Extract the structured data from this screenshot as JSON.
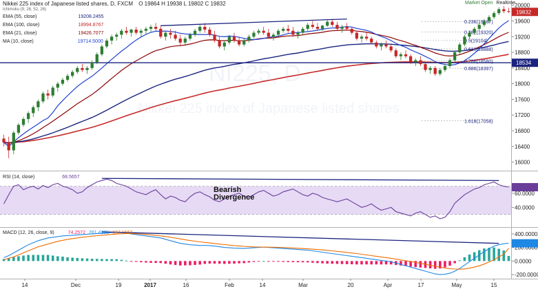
{
  "header": {
    "title": "Nikkei 225 index of Japanese listed shares, D, FXCM",
    "ohlc": "O 19864 H 19938 L 19802 C 19832",
    "indicator_ichimoku": "Ichimoku (9, 26, 52, 26)",
    "market_status": "Market Open",
    "realtime": "Realtime",
    "price_tag": "19832",
    "hline_tag": "18534"
  },
  "legend": [
    {
      "label": "EMA (55, close)",
      "value": "19208.2455",
      "color": "#1a237e"
    },
    {
      "label": "EMA (100, close)",
      "value": "18994.8767",
      "color": "#c62828"
    },
    {
      "label": "EMA (21, close)",
      "value": "19426.7077",
      "color": "#8b0000"
    },
    {
      "label": "MA (10, close)",
      "value": "19714.5000",
      "color": "#1e40d0"
    }
  ],
  "watermark": {
    "symbol": "NI225, D",
    "name": "Nikkei 225 index of Japanese listed shares"
  },
  "annotations": {
    "divergence_line1": "Bearish",
    "divergence_line2": "Divergence"
  },
  "fib_levels": [
    {
      "label": "0.236(19587)",
      "price": 19587
    },
    {
      "label": "0.382(19320)",
      "price": 19320
    },
    {
      "label": "0.5(19104)",
      "price": 19104
    },
    {
      "label": "0.618(18888)",
      "price": 18888
    },
    {
      "label": "0.786(18580)",
      "price": 18580
    },
    {
      "label": "0.886(18397)",
      "price": 18397
    },
    {
      "label": "1.618(17058)",
      "price": 17058
    }
  ],
  "colors": {
    "up": "#2e7d32",
    "down": "#c62828",
    "hline": "#1a237e",
    "trend": "#1a237e",
    "rsi": "#6a3d9a",
    "rsi_band": "#e6daf5",
    "macd": "#1e88e5",
    "signal": "#ef6c00",
    "hist_pos": "#26a69a",
    "hist_neg": "#e91e63",
    "tag": "#c62828",
    "hline_tag": "#1a237e"
  },
  "chart_data": [
    {
      "type": "candlestick",
      "title": "Nikkei 225 index of Japanese listed shares, D, FXCM",
      "ylim": [
        15800,
        20100
      ],
      "y_ticks": [
        16000,
        16400,
        16800,
        17200,
        17600,
        18000,
        18400,
        18800,
        19200,
        19600,
        20000
      ],
      "x_tick_labels": [
        "14",
        "Dec",
        "19",
        "2017",
        "16",
        "Feb",
        "14",
        "Mar",
        "20",
        "Apr",
        "17",
        "May",
        "15"
      ],
      "horizontal_line": 18534,
      "ohlc": [
        [
          16600,
          16700,
          16400,
          16500
        ],
        [
          16500,
          16650,
          16100,
          16300
        ],
        [
          16300,
          16800,
          16200,
          16750
        ],
        [
          16750,
          17000,
          16700,
          16950
        ],
        [
          16950,
          17150,
          16900,
          17100
        ],
        [
          17100,
          17300,
          17000,
          17250
        ],
        [
          17250,
          17450,
          17150,
          17400
        ],
        [
          17400,
          17600,
          17300,
          17550
        ],
        [
          17550,
          17800,
          17500,
          17750
        ],
        [
          17750,
          17850,
          17600,
          17700
        ],
        [
          17700,
          17950,
          17650,
          17900
        ],
        [
          17900,
          18050,
          17800,
          18000
        ],
        [
          18000,
          18150,
          17950,
          18100
        ],
        [
          18100,
          18250,
          18050,
          18200
        ],
        [
          18200,
          18350,
          18150,
          18300
        ],
        [
          18300,
          18450,
          18250,
          18400
        ],
        [
          18400,
          18500,
          18300,
          18350
        ],
        [
          18350,
          18450,
          18250,
          18400
        ],
        [
          18400,
          18600,
          18350,
          18550
        ],
        [
          18550,
          18800,
          18500,
          18750
        ],
        [
          18750,
          19000,
          18700,
          18950
        ],
        [
          18950,
          19150,
          18900,
          19100
        ],
        [
          19100,
          19250,
          19000,
          19200
        ],
        [
          19200,
          19300,
          19100,
          19250
        ],
        [
          19250,
          19400,
          19150,
          19350
        ],
        [
          19350,
          19450,
          19250,
          19300
        ],
        [
          19300,
          19400,
          19200,
          19380
        ],
        [
          19380,
          19450,
          19250,
          19300
        ],
        [
          19300,
          19400,
          19200,
          19350
        ],
        [
          19350,
          19450,
          19250,
          19400
        ],
        [
          19400,
          19500,
          19300,
          19450
        ],
        [
          19450,
          19550,
          19350,
          19400
        ],
        [
          19400,
          19480,
          19150,
          19200
        ],
        [
          19200,
          19350,
          19100,
          19300
        ],
        [
          19300,
          19400,
          19150,
          19250
        ],
        [
          19250,
          19350,
          19100,
          19150
        ],
        [
          19150,
          19250,
          18950,
          19050
        ],
        [
          19050,
          19200,
          19000,
          19150
        ],
        [
          19150,
          19300,
          19100,
          19250
        ],
        [
          19250,
          19400,
          19200,
          19350
        ],
        [
          19350,
          19500,
          19300,
          19450
        ],
        [
          19450,
          19550,
          19300,
          19380
        ],
        [
          19380,
          19450,
          19200,
          19250
        ],
        [
          19250,
          19350,
          19050,
          19100
        ],
        [
          19100,
          19200,
          18900,
          18950
        ],
        [
          18950,
          19100,
          18850,
          19050
        ],
        [
          19050,
          19250,
          19000,
          19200
        ],
        [
          19200,
          19300,
          19050,
          19100
        ],
        [
          19100,
          19200,
          18950,
          19000
        ],
        [
          19000,
          19150,
          18950,
          19100
        ],
        [
          19100,
          19250,
          19050,
          19200
        ],
        [
          19200,
          19350,
          19150,
          19300
        ],
        [
          19300,
          19400,
          19250,
          19350
        ],
        [
          19350,
          19450,
          19250,
          19300
        ],
        [
          19300,
          19400,
          19150,
          19200
        ],
        [
          19200,
          19300,
          19100,
          19250
        ],
        [
          19250,
          19400,
          19200,
          19350
        ],
        [
          19350,
          19450,
          19300,
          19400
        ],
        [
          19400,
          19500,
          19300,
          19350
        ],
        [
          19350,
          19450,
          19200,
          19250
        ],
        [
          19250,
          19350,
          19150,
          19300
        ],
        [
          19300,
          19450,
          19250,
          19400
        ],
        [
          19400,
          19550,
          19350,
          19500
        ],
        [
          19500,
          19600,
          19400,
          19450
        ],
        [
          19450,
          19550,
          19350,
          19400
        ],
        [
          19400,
          19500,
          19350,
          19480
        ],
        [
          19480,
          19620,
          19450,
          19580
        ],
        [
          19580,
          19650,
          19450,
          19500
        ],
        [
          19500,
          19580,
          19350,
          19400
        ],
        [
          19400,
          19500,
          19300,
          19450
        ],
        [
          19450,
          19550,
          19350,
          19400
        ],
        [
          19400,
          19450,
          19250,
          19300
        ],
        [
          19300,
          19350,
          19100,
          19150
        ],
        [
          19150,
          19250,
          19050,
          19200
        ],
        [
          19200,
          19300,
          19100,
          19150
        ],
        [
          19150,
          19200,
          19000,
          19050
        ],
        [
          19050,
          19100,
          18900,
          18950
        ],
        [
          18950,
          19050,
          18850,
          19000
        ],
        [
          19000,
          19100,
          18900,
          18950
        ],
        [
          18950,
          19000,
          18800,
          18850
        ],
        [
          18850,
          18900,
          18650,
          18700
        ],
        [
          18700,
          18800,
          18600,
          18750
        ],
        [
          18750,
          18850,
          18650,
          18700
        ],
        [
          18700,
          18750,
          18500,
          18550
        ],
        [
          18550,
          18650,
          18450,
          18600
        ],
        [
          18600,
          18700,
          18450,
          18500
        ],
        [
          18500,
          18550,
          18300,
          18350
        ],
        [
          18350,
          18450,
          18250,
          18400
        ],
        [
          18400,
          18450,
          18200,
          18250
        ],
        [
          18250,
          18400,
          18200,
          18350
        ],
        [
          18350,
          18500,
          18300,
          18450
        ],
        [
          18450,
          18650,
          18400,
          18600
        ],
        [
          18600,
          18850,
          18550,
          18800
        ],
        [
          18800,
          19050,
          18750,
          19000
        ],
        [
          19000,
          19250,
          18950,
          19200
        ],
        [
          19200,
          19350,
          19150,
          19300
        ],
        [
          19300,
          19450,
          19250,
          19400
        ],
        [
          19400,
          19550,
          19350,
          19500
        ],
        [
          19500,
          19650,
          19450,
          19600
        ],
        [
          19600,
          19750,
          19550,
          19700
        ],
        [
          19700,
          19850,
          19650,
          19800
        ],
        [
          19800,
          19950,
          19750,
          19900
        ],
        [
          19900,
          19980,
          19800,
          19850
        ],
        [
          19850,
          19938,
          19802,
          19832
        ]
      ]
    },
    {
      "type": "line",
      "title": "RSI (14, close)",
      "value_label": "68.5657",
      "ylim": [
        20,
        90
      ],
      "y_ticks": [
        40,
        60
      ],
      "band": [
        30,
        70
      ],
      "values": [
        45,
        58,
        70,
        72,
        65,
        68,
        70,
        66,
        71,
        68,
        72,
        74,
        70,
        68,
        65,
        60,
        62,
        68,
        72,
        76,
        78,
        80,
        78,
        74,
        72,
        70,
        66,
        62,
        60,
        58,
        62,
        65,
        58,
        52,
        56,
        54,
        50,
        48,
        55,
        60,
        62,
        58,
        55,
        50,
        48,
        52,
        56,
        58,
        60,
        56,
        54,
        58,
        62,
        64,
        60,
        56,
        58,
        62,
        64,
        66,
        62,
        58,
        56,
        60,
        58,
        54,
        52,
        50,
        48,
        50,
        52,
        48,
        44,
        40,
        42,
        45,
        40,
        36,
        38,
        40,
        34,
        32,
        30,
        28,
        32,
        34,
        30,
        26,
        28,
        24,
        26,
        34,
        46,
        52,
        58,
        62,
        66,
        68,
        72,
        74,
        76,
        72,
        70,
        68.5657
      ]
    },
    {
      "type": "line",
      "title": "MACD (12, 26, close, 9)",
      "value_labels": [
        "74.2572",
        "261.4235",
        "187.1663"
      ],
      "ylim": [
        -250,
        480
      ],
      "y_ticks": [
        -200,
        0,
        200,
        400
      ],
      "y_tick_labels": [
        "-200.0000",
        "0.0000",
        "200.0000",
        "400.0000"
      ],
      "series": [
        {
          "name": "MACD",
          "values": [
            50,
            80,
            120,
            160,
            200,
            240,
            270,
            300,
            320,
            340,
            350,
            360,
            370,
            375,
            380,
            385,
            390,
            395,
            400,
            405,
            410,
            415,
            420,
            425,
            420,
            410,
            400,
            390,
            380,
            370,
            360,
            350,
            340,
            320,
            300,
            280,
            260,
            250,
            240,
            235,
            230,
            232,
            228,
            220,
            210,
            200,
            195,
            190,
            188,
            185,
            190,
            195,
            200,
            205,
            200,
            195,
            190,
            185,
            180,
            175,
            170,
            165,
            160,
            150,
            140,
            130,
            120,
            110,
            100,
            90,
            80,
            70,
            60,
            50,
            40,
            30,
            20,
            10,
            0,
            -10,
            -30,
            -50,
            -70,
            -90,
            -110,
            -130,
            -150,
            -170,
            -190,
            -200,
            -195,
            -180,
            -150,
            -110,
            -60,
            -10,
            40,
            90,
            140,
            180,
            220,
            240,
            255,
            261.4235
          ]
        },
        {
          "name": "Signal",
          "values": [
            20,
            40,
            60,
            90,
            120,
            150,
            180,
            210,
            230,
            250,
            270,
            290,
            305,
            320,
            330,
            340,
            350,
            358,
            366,
            374,
            380,
            386,
            392,
            398,
            402,
            404,
            404,
            402,
            398,
            392,
            386,
            378,
            370,
            360,
            350,
            338,
            326,
            314,
            302,
            292,
            282,
            274,
            266,
            258,
            250,
            242,
            235,
            228,
            222,
            216,
            212,
            208,
            206,
            205,
            204,
            203,
            201,
            198,
            195,
            192,
            188,
            184,
            180,
            175,
            170,
            164,
            158,
            150,
            142,
            134,
            126,
            118,
            110,
            100,
            90,
            80,
            70,
            60,
            50,
            40,
            28,
            16,
            4,
            -8,
            -20,
            -34,
            -48,
            -62,
            -76,
            -90,
            -102,
            -112,
            -118,
            -120,
            -116,
            -106,
            -90,
            -70,
            -45,
            -15,
            20,
            60,
            100,
            187.1663
          ]
        },
        {
          "name": "Histogram",
          "values": [
            30,
            40,
            60,
            70,
            80,
            90,
            90,
            90,
            90,
            90,
            80,
            70,
            65,
            55,
            50,
            45,
            40,
            37,
            34,
            31,
            30,
            29,
            28,
            27,
            18,
            6,
            -4,
            -12,
            -18,
            -22,
            -26,
            -28,
            -30,
            -40,
            -50,
            -58,
            -66,
            -64,
            -62,
            -57,
            -52,
            -42,
            -38,
            -38,
            -40,
            -42,
            -40,
            -38,
            -34,
            -31,
            -22,
            -13,
            -6,
            0,
            -4,
            -8,
            -11,
            -13,
            -15,
            -17,
            -18,
            -19,
            -20,
            -25,
            -30,
            -34,
            -38,
            -40,
            -42,
            -44,
            -46,
            -48,
            -50,
            -50,
            -50,
            -50,
            -50,
            -50,
            -50,
            -50,
            -58,
            -66,
            -74,
            -82,
            -90,
            -96,
            -102,
            -108,
            -114,
            -110,
            -93,
            -68,
            -32,
            10,
            56,
            96,
            130,
            160,
            185,
            195,
            200,
            180,
            155,
            74.2572
          ]
        }
      ]
    }
  ]
}
